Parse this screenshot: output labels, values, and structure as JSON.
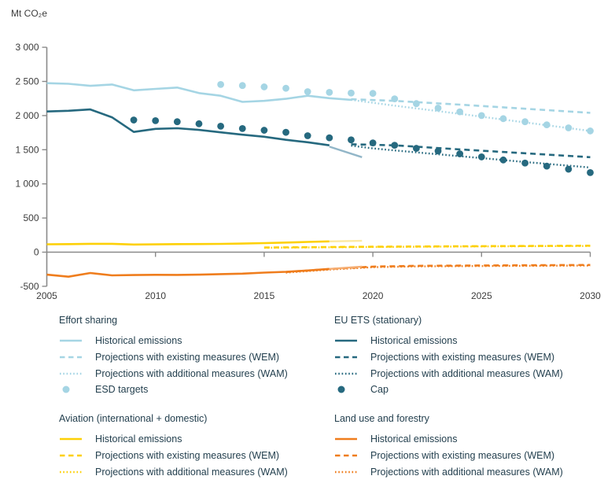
{
  "y_axis_title": "Mt CO₂e",
  "colors": {
    "effort_sharing": "#a5d5e4",
    "eu_ets": "#26697f",
    "aviation": "#fdd006",
    "land_use": "#ef7d1d",
    "approx_ets": "#92b6c8",
    "approx_aviation": "#fce9a2",
    "approx_land_use": "#f5ad72",
    "axis": "#8a8a8a",
    "tick_text": "#3c3c3c",
    "legend_text": "#24404f"
  },
  "chart_data": {
    "type": "line",
    "title": "",
    "xlabel": "",
    "ylabel": "Mt CO₂e",
    "xlim": [
      2005,
      2030
    ],
    "ylim": [
      -500,
      3000
    ],
    "grid": false,
    "legend_position": "bottom",
    "x_ticks": [
      2005,
      2010,
      2015,
      2020,
      2025,
      2030
    ],
    "x_tick_labels": [
      "2005",
      "2010",
      "2015",
      "2020",
      "2025",
      "2030"
    ],
    "y_ticks": [
      3000,
      2500,
      2000,
      1500,
      1000,
      500,
      0,
      -500
    ],
    "y_tick_labels": [
      "3 000",
      "2 500",
      "2 000",
      "1 500",
      "1 000",
      "500",
      "0",
      "-500"
    ],
    "series": [
      {
        "id": "effort-sharing-wem",
        "group": "Effort sharing",
        "label": "Projections with existing measures (WEM)",
        "style": "dashed",
        "color_key": "effort_sharing",
        "points": [
          [
            2019,
            2240
          ],
          [
            2021,
            2215
          ],
          [
            2024,
            2160
          ],
          [
            2027,
            2100
          ],
          [
            2030,
            2040
          ]
        ]
      },
      {
        "id": "effort-sharing-wam",
        "group": "Effort sharing",
        "label": "Projections with additional measures (WAM)",
        "style": "dotted",
        "color_key": "effort_sharing",
        "points": [
          [
            2019,
            2230
          ],
          [
            2021,
            2145
          ],
          [
            2024,
            2025
          ],
          [
            2027,
            1900
          ],
          [
            2030,
            1775
          ]
        ]
      },
      {
        "id": "effort-sharing-historical",
        "group": "Effort sharing",
        "label": "Historical emissions",
        "style": "solid",
        "color_key": "effort_sharing",
        "points": [
          [
            2005,
            2475
          ],
          [
            2006,
            2465
          ],
          [
            2007,
            2435
          ],
          [
            2008,
            2455
          ],
          [
            2009,
            2370
          ],
          [
            2010,
            2390
          ],
          [
            2011,
            2410
          ],
          [
            2012,
            2330
          ],
          [
            2013,
            2290
          ],
          [
            2014,
            2200
          ],
          [
            2015,
            2215
          ],
          [
            2016,
            2245
          ],
          [
            2017,
            2290
          ],
          [
            2018,
            2255
          ],
          [
            2019,
            2230
          ]
        ]
      },
      {
        "id": "ets-wem",
        "group": "EU ETS (stationary)",
        "label": "Projections with existing measures (WEM)",
        "style": "dashed",
        "color_key": "eu_ets",
        "points": [
          [
            2019,
            1580
          ],
          [
            2021,
            1565
          ],
          [
            2024,
            1505
          ],
          [
            2027,
            1448
          ],
          [
            2030,
            1390
          ]
        ]
      },
      {
        "id": "ets-wam",
        "group": "EU ETS (stationary)",
        "label": "Projections with additional measures (WAM)",
        "style": "dotted",
        "color_key": "eu_ets",
        "points": [
          [
            2019,
            1560
          ],
          [
            2020,
            1520
          ],
          [
            2021,
            1490
          ],
          [
            2024,
            1405
          ],
          [
            2027,
            1320
          ],
          [
            2030,
            1240
          ]
        ]
      },
      {
        "id": "ets-historical",
        "group": "EU ETS (stationary)",
        "label": "Historical emissions",
        "style": "solid",
        "color_key": "eu_ets",
        "points": [
          [
            2005,
            2060
          ],
          [
            2006,
            2070
          ],
          [
            2007,
            2090
          ],
          [
            2008,
            1975
          ],
          [
            2009,
            1760
          ],
          [
            2010,
            1805
          ],
          [
            2011,
            1815
          ],
          [
            2012,
            1790
          ],
          [
            2013,
            1755
          ],
          [
            2014,
            1720
          ],
          [
            2015,
            1690
          ],
          [
            2016,
            1645
          ],
          [
            2017,
            1610
          ],
          [
            2018,
            1565
          ]
        ]
      },
      {
        "id": "ets-approximated",
        "group": "EU ETS (stationary)",
        "label": null,
        "style": "approx",
        "color_key": "approx_ets",
        "points": [
          [
            2018,
            1545
          ],
          [
            2019.5,
            1390
          ]
        ]
      },
      {
        "id": "aviation-wem",
        "group": "Aviation (international + domestic)",
        "label": "Projections with existing measures (WEM)",
        "style": "dashed",
        "color_key": "aviation",
        "points": [
          [
            2015,
            68
          ],
          [
            2020,
            80
          ],
          [
            2025,
            88
          ],
          [
            2030,
            95
          ]
        ]
      },
      {
        "id": "aviation-wam",
        "group": "Aviation (international + domestic)",
        "label": "Projections with additional measures (WAM)",
        "style": "dotted",
        "color_key": "aviation",
        "points": [
          [
            2015,
            64
          ],
          [
            2020,
            76
          ],
          [
            2025,
            84
          ],
          [
            2030,
            91
          ]
        ]
      },
      {
        "id": "aviation-historical",
        "group": "Aviation (international + domestic)",
        "label": "Historical emissions",
        "style": "solid",
        "color_key": "aviation",
        "points": [
          [
            2005,
            115
          ],
          [
            2006,
            118
          ],
          [
            2007,
            122
          ],
          [
            2008,
            122
          ],
          [
            2009,
            112
          ],
          [
            2010,
            114
          ],
          [
            2011,
            118
          ],
          [
            2012,
            119
          ],
          [
            2013,
            121
          ],
          [
            2014,
            125
          ],
          [
            2015,
            132
          ],
          [
            2016,
            140
          ],
          [
            2017,
            150
          ],
          [
            2018,
            158
          ]
        ]
      },
      {
        "id": "aviation-approximated",
        "group": "Aviation (international + domestic)",
        "label": null,
        "style": "approx",
        "color_key": "approx_aviation",
        "points": [
          [
            2018,
            158
          ],
          [
            2019.5,
            166
          ]
        ]
      },
      {
        "id": "lulucf-wem",
        "group": "Land use and forestry",
        "label": "Projections with existing measures (WEM)",
        "style": "dashed",
        "color_key": "land_use",
        "points": [
          [
            2016,
            -292
          ],
          [
            2018,
            -248
          ],
          [
            2020,
            -212
          ],
          [
            2022,
            -200
          ],
          [
            2026,
            -194
          ],
          [
            2030,
            -188
          ]
        ]
      },
      {
        "id": "lulucf-wam",
        "group": "Land use and forestry",
        "label": "Projections with additional measures (WAM)",
        "style": "dotted",
        "color_key": "land_use",
        "points": [
          [
            2016,
            -300
          ],
          [
            2018,
            -256
          ],
          [
            2020,
            -220
          ],
          [
            2022,
            -208
          ],
          [
            2026,
            -202
          ],
          [
            2030,
            -196
          ]
        ]
      },
      {
        "id": "lulucf-historical",
        "group": "Land use and forestry",
        "label": "Historical emissions",
        "style": "solid",
        "color_key": "land_use",
        "points": [
          [
            2005,
            -330
          ],
          [
            2006,
            -360
          ],
          [
            2007,
            -305
          ],
          [
            2008,
            -340
          ],
          [
            2009,
            -335
          ],
          [
            2010,
            -332
          ],
          [
            2011,
            -333
          ],
          [
            2012,
            -330
          ],
          [
            2013,
            -322
          ],
          [
            2014,
            -315
          ],
          [
            2015,
            -300
          ],
          [
            2016,
            -288
          ],
          [
            2017,
            -268
          ],
          [
            2018,
            -245
          ]
        ]
      },
      {
        "id": "lulucf-approximated",
        "group": "Land use and forestry",
        "label": null,
        "style": "approx",
        "color_key": "approx_land_use",
        "points": [
          [
            2018,
            -245
          ],
          [
            2019.5,
            -212
          ]
        ]
      },
      {
        "id": "esd-targets",
        "group": "Effort sharing",
        "label": "ESD targets",
        "style": "points",
        "color_key": "effort_sharing",
        "points": [
          [
            2013,
            2455
          ],
          [
            2014,
            2440
          ],
          [
            2015,
            2420
          ],
          [
            2016,
            2400
          ],
          [
            2017,
            2350
          ],
          [
            2018,
            2340
          ],
          [
            2019,
            2330
          ],
          [
            2020,
            2325
          ],
          [
            2021,
            2245
          ],
          [
            2022,
            2175
          ],
          [
            2023,
            2110
          ],
          [
            2024,
            2055
          ],
          [
            2025,
            2000
          ],
          [
            2026,
            1955
          ],
          [
            2027,
            1910
          ],
          [
            2028,
            1865
          ],
          [
            2029,
            1820
          ],
          [
            2030,
            1775
          ]
        ]
      },
      {
        "id": "ets-cap",
        "group": "EU ETS (stationary)",
        "label": "Cap",
        "style": "points",
        "color_key": "eu_ets",
        "points": [
          [
            2009,
            1935
          ],
          [
            2010,
            1925
          ],
          [
            2011,
            1910
          ],
          [
            2012,
            1880
          ],
          [
            2013,
            1845
          ],
          [
            2014,
            1810
          ],
          [
            2015,
            1785
          ],
          [
            2016,
            1755
          ],
          [
            2017,
            1705
          ],
          [
            2018,
            1675
          ],
          [
            2019,
            1645
          ],
          [
            2020,
            1600
          ],
          [
            2021,
            1565
          ],
          [
            2022,
            1520
          ],
          [
            2023,
            1480
          ],
          [
            2024,
            1440
          ],
          [
            2025,
            1395
          ],
          [
            2026,
            1350
          ],
          [
            2027,
            1305
          ],
          [
            2028,
            1260
          ],
          [
            2029,
            1215
          ],
          [
            2030,
            1165
          ]
        ]
      }
    ]
  },
  "legend": {
    "groups": [
      {
        "id": "effort-sharing",
        "title": "Effort sharing",
        "color_key": "effort_sharing",
        "items": [
          {
            "style": "solid",
            "label": "Historical emissions"
          },
          {
            "style": "dashed",
            "label": "Projections with existing measures (WEM)"
          },
          {
            "style": "dotted",
            "label": "Projections with additional measures (WAM)"
          },
          {
            "style": "point",
            "label": "ESD targets"
          }
        ]
      },
      {
        "id": "eu-ets",
        "title": "EU ETS (stationary)",
        "color_key": "eu_ets",
        "items": [
          {
            "style": "solid",
            "label": "Historical emissions"
          },
          {
            "style": "dashed",
            "label": "Projections with existing measures (WEM)"
          },
          {
            "style": "dotted",
            "label": "Projections with additional measures (WAM)"
          },
          {
            "style": "point",
            "label": "Cap"
          }
        ]
      },
      {
        "id": "aviation",
        "title": "Aviation (international + domestic)",
        "color_key": "aviation",
        "items": [
          {
            "style": "solid",
            "label": "Historical emissions"
          },
          {
            "style": "dashed",
            "label": "Projections with existing measures (WEM)"
          },
          {
            "style": "dotted",
            "label": "Projections with additional measures (WAM)"
          }
        ]
      },
      {
        "id": "land-use",
        "title": "Land use and forestry",
        "color_key": "land_use",
        "items": [
          {
            "style": "solid",
            "label": "Historical emissions"
          },
          {
            "style": "dashed",
            "label": "Projections with existing measures (WEM)"
          },
          {
            "style": "dotted",
            "label": "Projections with additional measures (WAM)"
          }
        ]
      }
    ]
  }
}
